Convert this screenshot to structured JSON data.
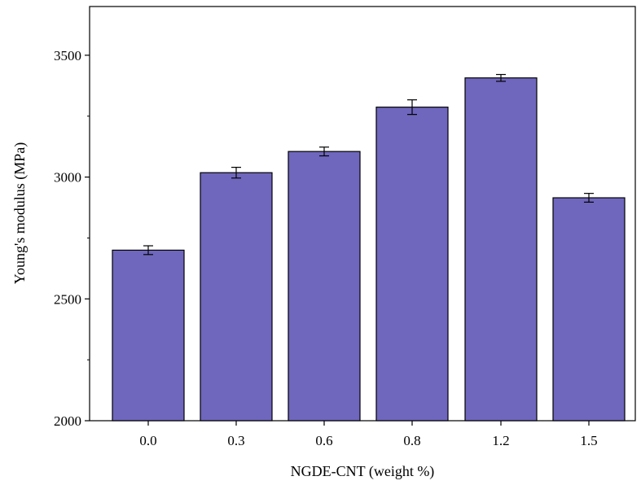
{
  "chart_data": {
    "type": "bar",
    "title": "",
    "xlabel": "NGDE-CNT (weight %)",
    "ylabel": "Young's modulus (MPa)",
    "categories": [
      "0.0",
      "0.3",
      "0.6",
      "0.8",
      "1.2",
      "1.5"
    ],
    "values": [
      2700,
      3018,
      3105,
      3287,
      3407,
      2915
    ],
    "errors": [
      18,
      22,
      18,
      30,
      14,
      18
    ],
    "ylim": [
      2000,
      3700
    ],
    "yticks": [
      2000,
      2500,
      3000,
      3500
    ],
    "ytick_labels": [
      "2000",
      "2500",
      "3000",
      "3500"
    ],
    "grid": false,
    "legend": "none",
    "colors": {
      "bar_fill": "#6f67bd",
      "bar_stroke": "#000000",
      "axis": "#000000"
    }
  }
}
